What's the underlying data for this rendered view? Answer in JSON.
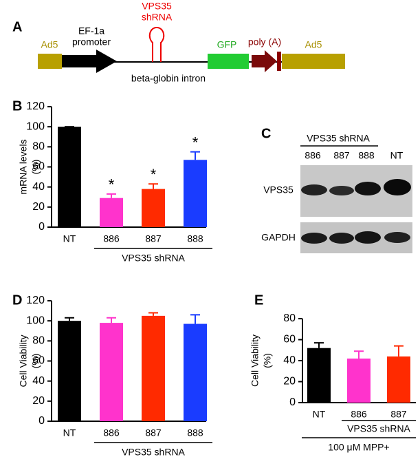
{
  "diagram": {
    "panel_label": "A",
    "ad5_left": "Ad5",
    "promoter": [
      "EF-1a",
      "promoter"
    ],
    "shrna": [
      "VPS35",
      "shRNA"
    ],
    "intron": "beta-globin intron",
    "gfp": "GFP",
    "polya": "poly (A)",
    "ad5_right": "Ad5"
  },
  "blot": {
    "panel_label": "C",
    "group_label": "VPS35 shRNA",
    "lanes": [
      "886",
      "887",
      "888",
      "NT"
    ],
    "rows": [
      "VPS35",
      "GAPDH"
    ]
  },
  "chart_data": [
    {
      "type": "bar",
      "panel_label": "B",
      "ylabel": [
        "mRNA levels",
        "(%)"
      ],
      "categories": [
        "NT",
        "886",
        "887",
        "888"
      ],
      "values": [
        100,
        29,
        38,
        67
      ],
      "errors": [
        0,
        4,
        5,
        8
      ],
      "significance": [
        null,
        "*",
        "*",
        "*"
      ],
      "colors": [
        "#000000",
        "#ff33cc",
        "#ff2a00",
        "#1a3cff"
      ],
      "ylim": [
        0,
        120
      ],
      "yticks": [
        0,
        20,
        40,
        60,
        80,
        100,
        120
      ],
      "groups": [
        {
          "label": "VPS35 shRNA",
          "categories": [
            "886",
            "887",
            "888"
          ]
        }
      ]
    },
    {
      "type": "bar",
      "panel_label": "D",
      "ylabel": [
        "Cell Viability",
        "(%)"
      ],
      "categories": [
        "NT",
        "886",
        "887",
        "888"
      ],
      "values": [
        100,
        98,
        105,
        97
      ],
      "errors": [
        3,
        5,
        3,
        9
      ],
      "colors": [
        "#000000",
        "#ff33cc",
        "#ff2a00",
        "#1a3cff"
      ],
      "ylim": [
        0,
        120
      ],
      "yticks": [
        0,
        20,
        40,
        60,
        80,
        100,
        120
      ],
      "groups": [
        {
          "label": "VPS35 shRNA",
          "categories": [
            "886",
            "887",
            "888"
          ]
        }
      ]
    },
    {
      "type": "bar",
      "panel_label": "E",
      "ylabel": [
        "Cell Viability",
        "(%)"
      ],
      "categories": [
        "NT",
        "886",
        "887"
      ],
      "values": [
        52,
        42,
        44
      ],
      "errors": [
        5,
        7,
        10
      ],
      "colors": [
        "#000000",
        "#ff33cc",
        "#ff2a00"
      ],
      "ylim": [
        0,
        80
      ],
      "yticks": [
        0,
        20,
        40,
        60,
        80
      ],
      "groups": [
        {
          "label": "VPS35 shRNA",
          "categories": [
            "886",
            "887"
          ]
        },
        {
          "label": "100 μM MPP+",
          "categories": [
            "NT",
            "886",
            "887"
          ]
        }
      ]
    }
  ]
}
